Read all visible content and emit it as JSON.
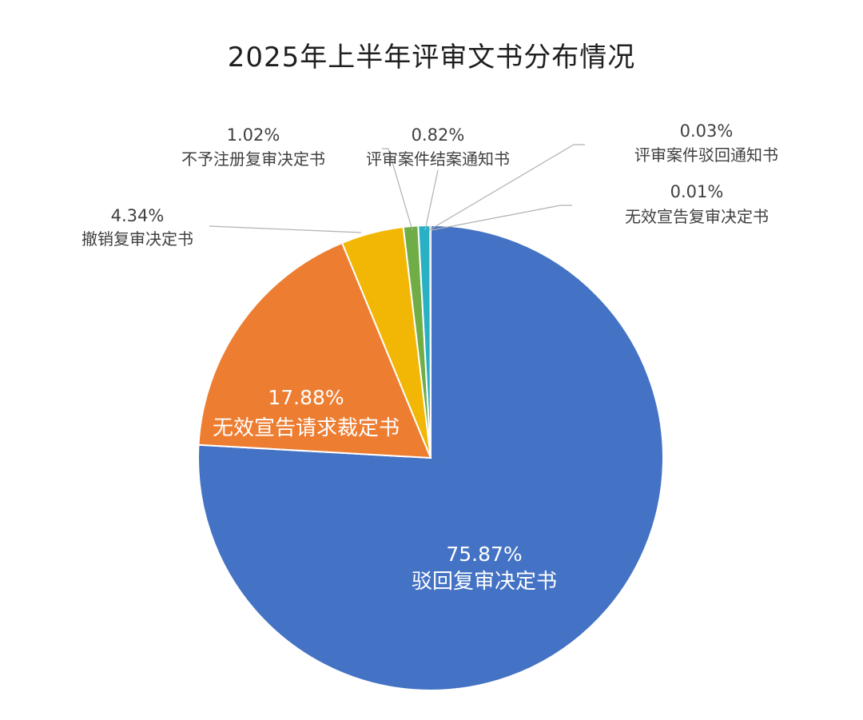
{
  "chart_data": {
    "type": "pie",
    "title": "2025年上半年评审文书分布情况",
    "slices": [
      {
        "label": "驳回复审决定书",
        "value": 75.87,
        "display": "75.87%",
        "color": "#4472C4"
      },
      {
        "label": "无效宣告请求裁定书",
        "value": 17.88,
        "display": "17.88%",
        "color": "#ED7D31"
      },
      {
        "label": "撤销复审决定书",
        "value": 4.34,
        "display": "4.34%",
        "color": "#F2B705"
      },
      {
        "label": "不予注册复审决定书",
        "value": 1.02,
        "display": "1.02%",
        "color": "#70AD47"
      },
      {
        "label": "评审案件结案通知书",
        "value": 0.82,
        "display": "0.82%",
        "color": "#2AB0C4"
      },
      {
        "label": "评审案件驳回通知书",
        "value": 0.03,
        "display": "0.03%",
        "color": "#264478"
      },
      {
        "label": "无效宣告复审决定书",
        "value": 0.01,
        "display": "0.01%",
        "color": "#9E480E"
      }
    ],
    "start_angle": "12 o'clock",
    "direction": "clockwise",
    "legend": "none",
    "labels": "data labels with percentage and category name"
  }
}
